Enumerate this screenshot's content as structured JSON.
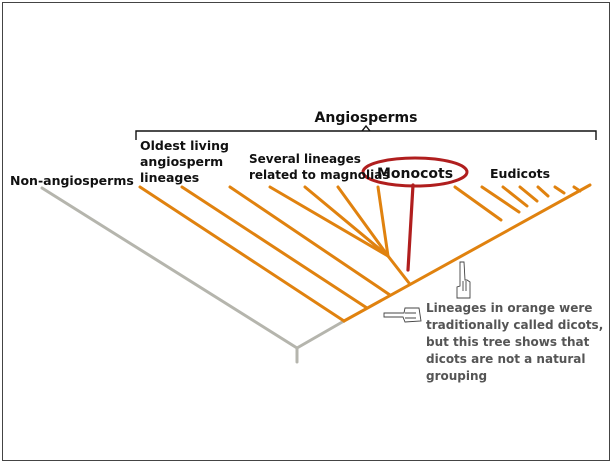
{
  "title": "Angiosperms",
  "labels": {
    "non_angiosperms": "Non-angiosperms",
    "oldest_line1": "Oldest living",
    "oldest_line2": "angiosperm",
    "oldest_line3": "lineages",
    "magnolias_line1": "Several lineages",
    "magnolias_line2": "related to magnolias",
    "monocots": "Monocots",
    "eudicots": "Eudicots"
  },
  "note": {
    "line1": "Lineages in orange were",
    "line2": "traditionally called dicots,",
    "line3": "but this tree shows that",
    "line4": "dicots are not a natural",
    "line5": "grouping"
  },
  "colors": {
    "orange": "#e0820f",
    "gray": "#b5b5ad",
    "red": "#b01e1e",
    "text": "#111111",
    "note_text": "#555555"
  },
  "icons": {
    "pointing_up": "hand-pointing-up-icon",
    "pointing_left": "hand-pointing-left-icon"
  }
}
